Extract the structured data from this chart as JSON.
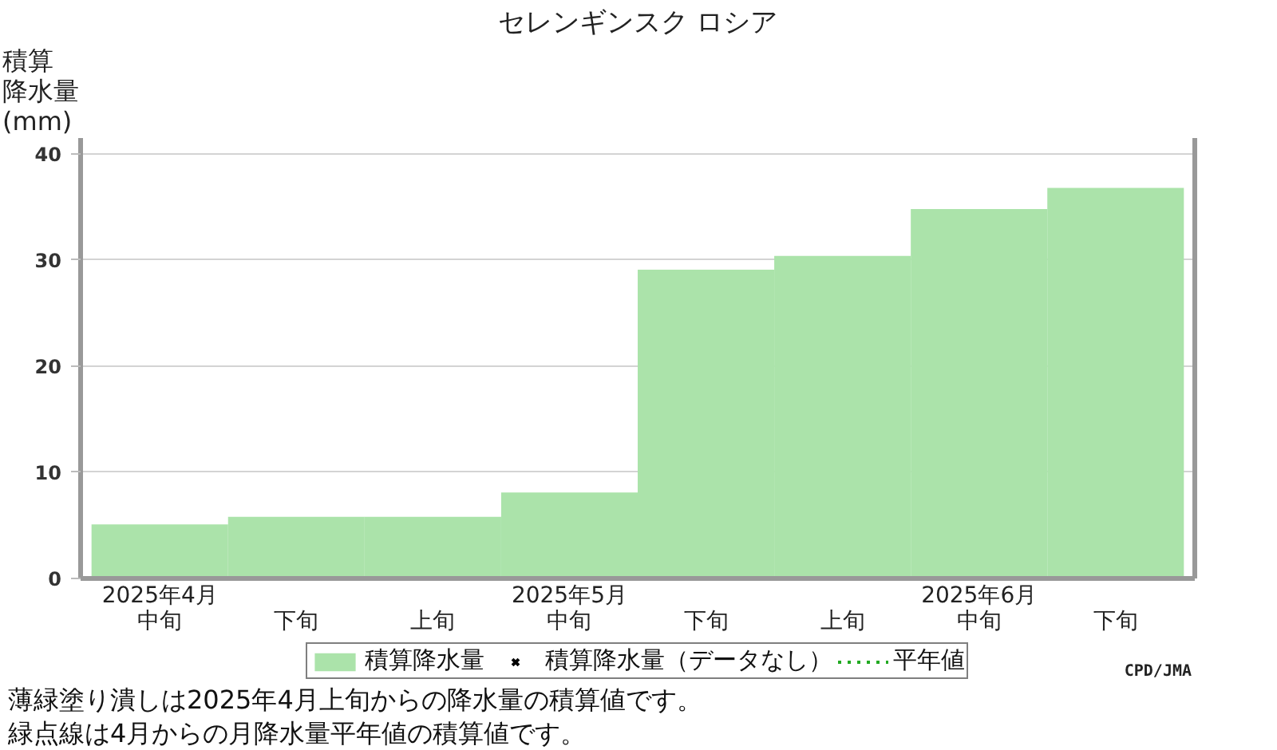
{
  "chart_data": {
    "type": "bar",
    "title": "セレンギンスク ロシア",
    "ylabel": "積算降水量(mm)",
    "categories": [
      "2025年4月中旬",
      "下旬",
      "上旬",
      "2025年5月中旬",
      "下旬",
      "上旬",
      "2025年6月中旬",
      "下旬"
    ],
    "series": [
      {
        "name": "積算降水量",
        "color": "#abe3aa",
        "values": [
          5.1,
          5.8,
          5.8,
          8.1,
          29.1,
          30.4,
          34.8,
          36.8
        ]
      },
      {
        "name": "積算降水量（データなし）",
        "type": "scatter",
        "marker": "cross",
        "color": "#000000",
        "values": [
          null,
          null,
          null,
          null,
          null,
          null,
          null,
          null
        ]
      },
      {
        "name": "平年値",
        "type": "line",
        "line_style": "dotted",
        "color": "#22aa22",
        "values": [
          null,
          null,
          null,
          null,
          null,
          null,
          null,
          null
        ]
      }
    ],
    "ylim": [
      0,
      41.5
    ],
    "yticks": [
      0,
      10,
      20,
      30,
      40
    ],
    "grid": "y",
    "legend": "bottom",
    "annotations": [
      "CPD/JMA",
      "薄緑塗り潰しは2025年4月上旬からの降水量の積算値です。",
      "緑点線は4月からの月降水量平年値の積算値です。"
    ]
  }
}
